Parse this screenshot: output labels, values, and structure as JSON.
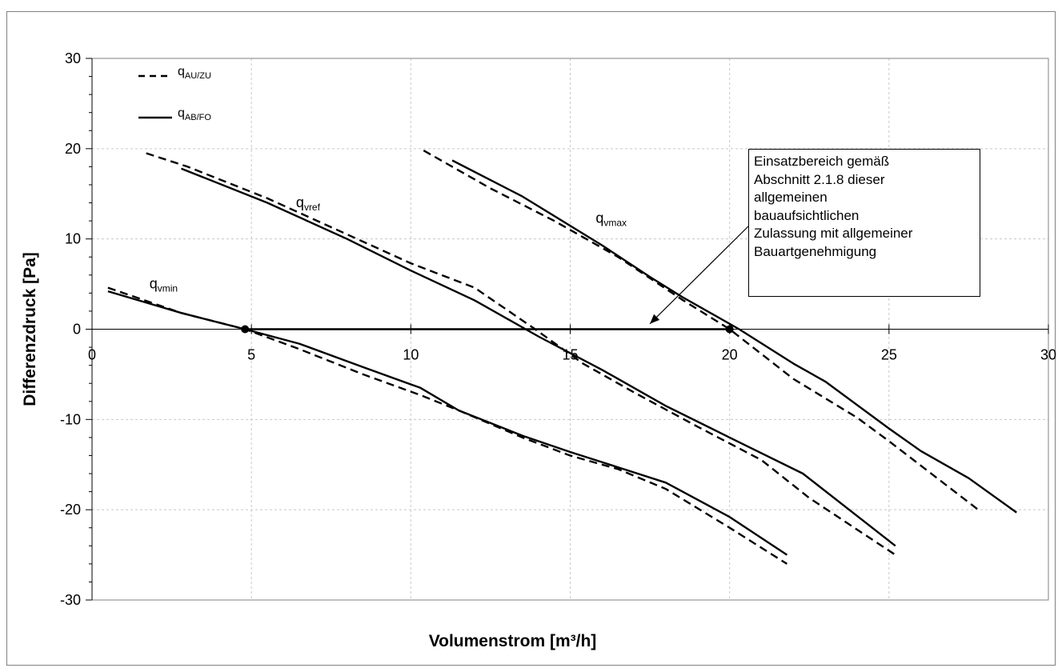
{
  "chart_data": {
    "type": "line",
    "xlabel": "Volumenstrom [m³/h]",
    "ylabel": "Differenzdruck [Pa]",
    "xlim": [
      0,
      30
    ],
    "ylim": [
      -30,
      30
    ],
    "x_ticks": [
      "0",
      "5",
      "10",
      "15",
      "20",
      "25",
      "30"
    ],
    "y_ticks": [
      "30",
      "20",
      "10",
      "0",
      "-10",
      "-20",
      "-30"
    ],
    "grid": true,
    "legend_position": "top-left",
    "legend": [
      {
        "label": "q",
        "sub": "AU/ZU",
        "style": "dashed"
      },
      {
        "label": "q",
        "sub": "AB/FO",
        "style": "solid"
      }
    ],
    "series": [
      {
        "label": "q",
        "sub": "vmin",
        "style": "solid",
        "points": [
          [
            0.5,
            4.2
          ],
          [
            2.8,
            1.8
          ],
          [
            4.8,
            0
          ],
          [
            6.5,
            -1.6
          ],
          [
            8.5,
            -4.2
          ],
          [
            10.3,
            -6.5
          ],
          [
            11.5,
            -9
          ],
          [
            13.5,
            -11.8
          ],
          [
            15,
            -13.6
          ],
          [
            16.5,
            -15.3
          ],
          [
            18,
            -17
          ],
          [
            20,
            -20.8
          ],
          [
            21.8,
            -25
          ]
        ]
      },
      {
        "label": "q",
        "sub": "vmin",
        "style": "dashed",
        "points": [
          [
            0.5,
            4.6
          ],
          [
            2.8,
            1.8
          ],
          [
            4.8,
            0
          ],
          [
            6.5,
            -2.2
          ],
          [
            8.5,
            -5
          ],
          [
            10.3,
            -7.3
          ],
          [
            11.5,
            -9
          ],
          [
            13.5,
            -12
          ],
          [
            15,
            -14
          ],
          [
            16.5,
            -15.5
          ],
          [
            18,
            -17.7
          ],
          [
            20,
            -22
          ],
          [
            21.8,
            -26
          ]
        ]
      },
      {
        "label": "q",
        "sub": "vref",
        "style": "solid",
        "points": [
          [
            2.8,
            17.8
          ],
          [
            5.5,
            14
          ],
          [
            8,
            10
          ],
          [
            10,
            6.5
          ],
          [
            12,
            3.2
          ],
          [
            14,
            -0.8
          ],
          [
            16,
            -4.5
          ],
          [
            18,
            -8.5
          ],
          [
            20,
            -12
          ],
          [
            22.3,
            -16
          ],
          [
            25.2,
            -24
          ]
        ]
      },
      {
        "label": "q",
        "sub": "vref",
        "style": "dashed",
        "points": [
          [
            1.7,
            19.5
          ],
          [
            3,
            18
          ],
          [
            5.5,
            14.5
          ],
          [
            8,
            10.5
          ],
          [
            10,
            7.3
          ],
          [
            12,
            4.6
          ],
          [
            13.9,
            0
          ],
          [
            15.4,
            -3.8
          ],
          [
            17,
            -7
          ],
          [
            19,
            -10.8
          ],
          [
            21,
            -14.5
          ],
          [
            22.5,
            -18.7
          ],
          [
            25.2,
            -25
          ]
        ]
      },
      {
        "label": "q",
        "sub": "vmax",
        "style": "solid",
        "points": [
          [
            11.3,
            18.7
          ],
          [
            13.5,
            14.7
          ],
          [
            16,
            9.3
          ],
          [
            17.5,
            5.8
          ],
          [
            18.5,
            3.6
          ],
          [
            20.3,
            0
          ],
          [
            22,
            -3.8
          ],
          [
            23,
            -5.8
          ],
          [
            25,
            -11
          ],
          [
            26,
            -13.5
          ],
          [
            27.5,
            -16.5
          ],
          [
            29,
            -20.3
          ]
        ]
      },
      {
        "label": "q",
        "sub": "vmax",
        "style": "dashed",
        "points": [
          [
            10.4,
            19.8
          ],
          [
            12.5,
            15.6
          ],
          [
            14.5,
            12
          ],
          [
            16.5,
            8
          ],
          [
            18.5,
            3.3
          ],
          [
            20,
            0
          ],
          [
            22,
            -5.5
          ],
          [
            24,
            -9.8
          ],
          [
            25,
            -12.4
          ],
          [
            27.8,
            -20
          ]
        ]
      },
      {
        "label": "",
        "style": "solid",
        "points": [
          [
            4.8,
            0
          ],
          [
            20,
            0
          ]
        ]
      }
    ],
    "markers": [
      [
        4.8,
        0
      ],
      [
        20,
        0
      ]
    ],
    "annotation": {
      "text": "Einsatzbereich  gemäß\nAbschnitt 2.1.8 dieser\nallgemeinen\nbauaufsichtlichen\nZulassung mit allgemeiner\nBauartgenehmigung",
      "arrow_to": [
        17.5,
        0.6
      ]
    }
  }
}
